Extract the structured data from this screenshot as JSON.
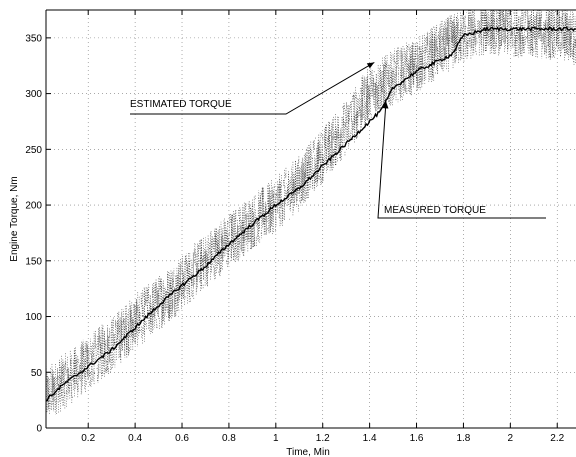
{
  "chart_data": {
    "type": "line",
    "title": "",
    "xlabel": "Time, Min",
    "ylabel": "Engine Torque, Nm",
    "xlim": [
      0.02,
      2.28
    ],
    "ylim": [
      0,
      375
    ],
    "grid": true,
    "xticks": [
      0.2,
      0.4,
      0.6,
      0.8,
      1,
      1.2,
      1.4,
      1.6,
      1.8,
      2,
      2.2
    ],
    "xtick_labels": [
      "0.2",
      "0.4",
      "0.6",
      "0.8",
      "1",
      "1.2",
      "1.4",
      "1.6",
      "1.8",
      "2",
      "2.2"
    ],
    "yticks": [
      0,
      50,
      100,
      150,
      200,
      250,
      300,
      350
    ],
    "ytick_labels": [
      "0",
      "50",
      "100",
      "150",
      "200",
      "250",
      "300",
      "350"
    ],
    "series": [
      {
        "name": "MEASURED TORQUE",
        "style": "solid",
        "color": "#000000",
        "x": [
          0.02,
          0.1,
          0.2,
          0.3,
          0.4,
          0.5,
          0.6,
          0.7,
          0.8,
          0.9,
          1.0,
          1.1,
          1.2,
          1.3,
          1.4,
          1.45,
          1.5,
          1.6,
          1.7,
          1.75,
          1.8,
          1.85,
          1.9,
          2.0,
          2.1,
          2.2,
          2.28
        ],
        "y": [
          25,
          40,
          55,
          70,
          90,
          110,
          128,
          145,
          165,
          183,
          200,
          215,
          235,
          255,
          275,
          285,
          305,
          320,
          330,
          335,
          352,
          355,
          358,
          358,
          358,
          358,
          358
        ]
      },
      {
        "name": "ESTIMATED TORQUE",
        "style": "noisy-dotted",
        "color": "#000000",
        "noise_amplitude": 25,
        "x": [
          0.02,
          0.1,
          0.2,
          0.3,
          0.4,
          0.5,
          0.6,
          0.7,
          0.8,
          0.9,
          1.0,
          1.1,
          1.2,
          1.3,
          1.4,
          1.5,
          1.6,
          1.7,
          1.8,
          1.9,
          2.0,
          2.1,
          2.2,
          2.28
        ],
        "y": [
          30,
          42,
          58,
          75,
          95,
          112,
          130,
          150,
          168,
          185,
          200,
          220,
          245,
          270,
          300,
          315,
          325,
          340,
          352,
          360,
          358,
          356,
          355,
          350
        ]
      }
    ],
    "annotations": [
      {
        "text": "ESTIMATED TORQUE",
        "target": {
          "x": 1.42,
          "y": 328
        }
      },
      {
        "text": "MEASURED TORQUE",
        "target": {
          "x": 1.47,
          "y": 293
        }
      }
    ]
  }
}
